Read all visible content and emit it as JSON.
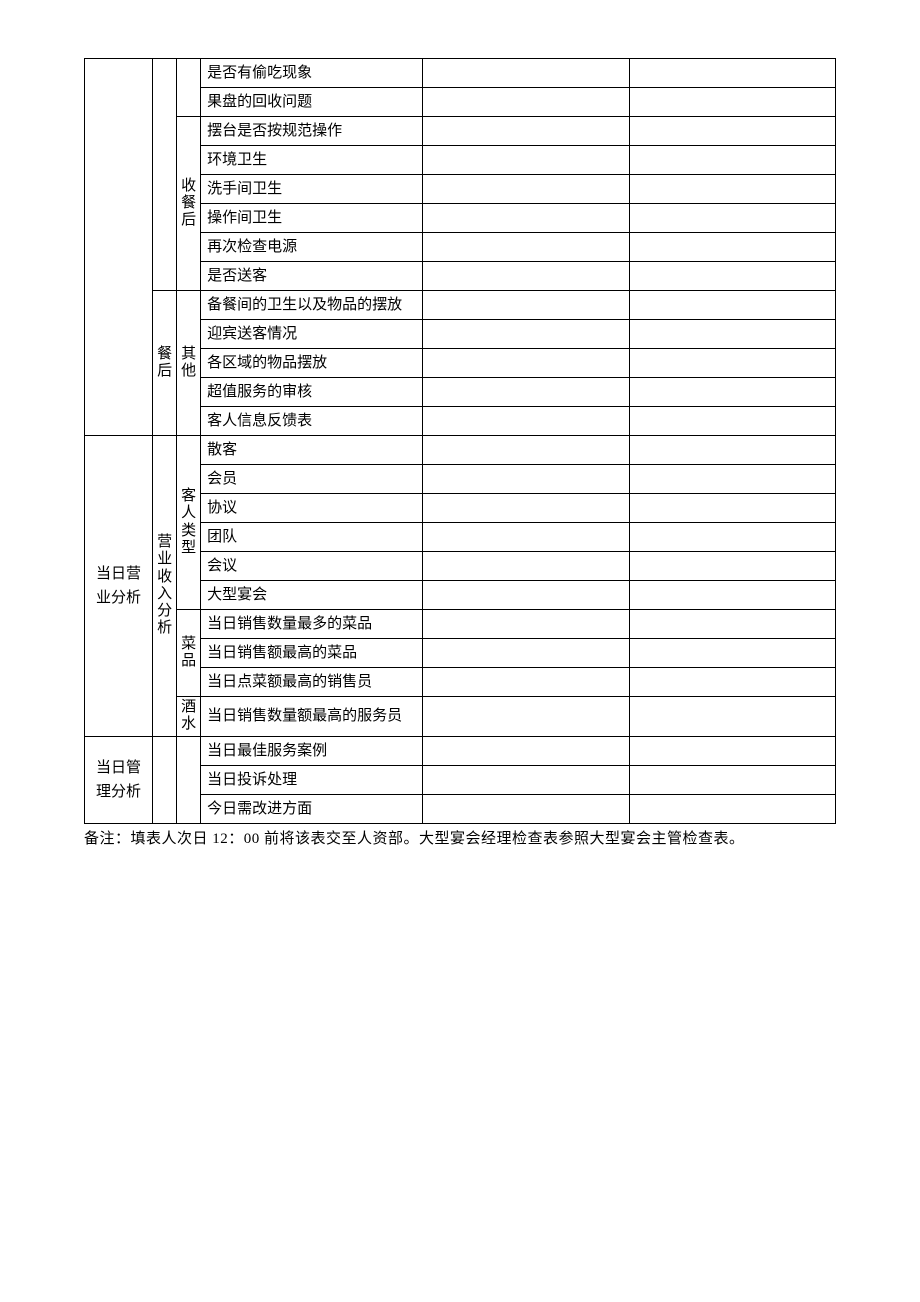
{
  "colors": {
    "border": "#000000",
    "text": "#000000",
    "background": "#ffffff"
  },
  "font": {
    "family": "SimSun",
    "size_pt": 11
  },
  "col1": {
    "blank": "",
    "biz_analysis": "当日营业分析",
    "mgmt_analysis": "当日管理分析"
  },
  "col2": {
    "blank": "",
    "after_meal": "餐后",
    "income_analysis": "营业收入分析"
  },
  "col3": {
    "blank": "",
    "after_service": "收餐后",
    "other": "其他",
    "guest_type": "客人类型",
    "dishes": "菜品",
    "drinks": "酒水"
  },
  "rows": {
    "r1": "是否有偷吃现象",
    "r2": "果盘的回收问题",
    "r3": "摆台是否按规范操作",
    "r4": "环境卫生",
    "r5": "洗手间卫生",
    "r6": "操作间卫生",
    "r7": "再次检查电源",
    "r8": "是否送客",
    "r9": "备餐间的卫生以及物品的摆放",
    "r10": "迎宾送客情况",
    "r11": "各区域的物品摆放",
    "r12": "超值服务的审核",
    "r13": "客人信息反馈表",
    "r14": "散客",
    "r15": "会员",
    "r16": "协议",
    "r17": "团队",
    "r18": "会议",
    "r19": "大型宴会",
    "r20": "当日销售数量最多的菜品",
    "r21": "当日销售额最高的菜品",
    "r22": "当日点菜额最高的销售员",
    "r23": "当日销售数量额最高的服务员",
    "r24": "当日最佳服务案例",
    "r25": "当日投诉处理",
    "r26": "今日需改进方面"
  },
  "note": "备注：填表人次日 12：00 前将该表交至人资部。大型宴会经理检查表参照大型宴会主管检查表。"
}
